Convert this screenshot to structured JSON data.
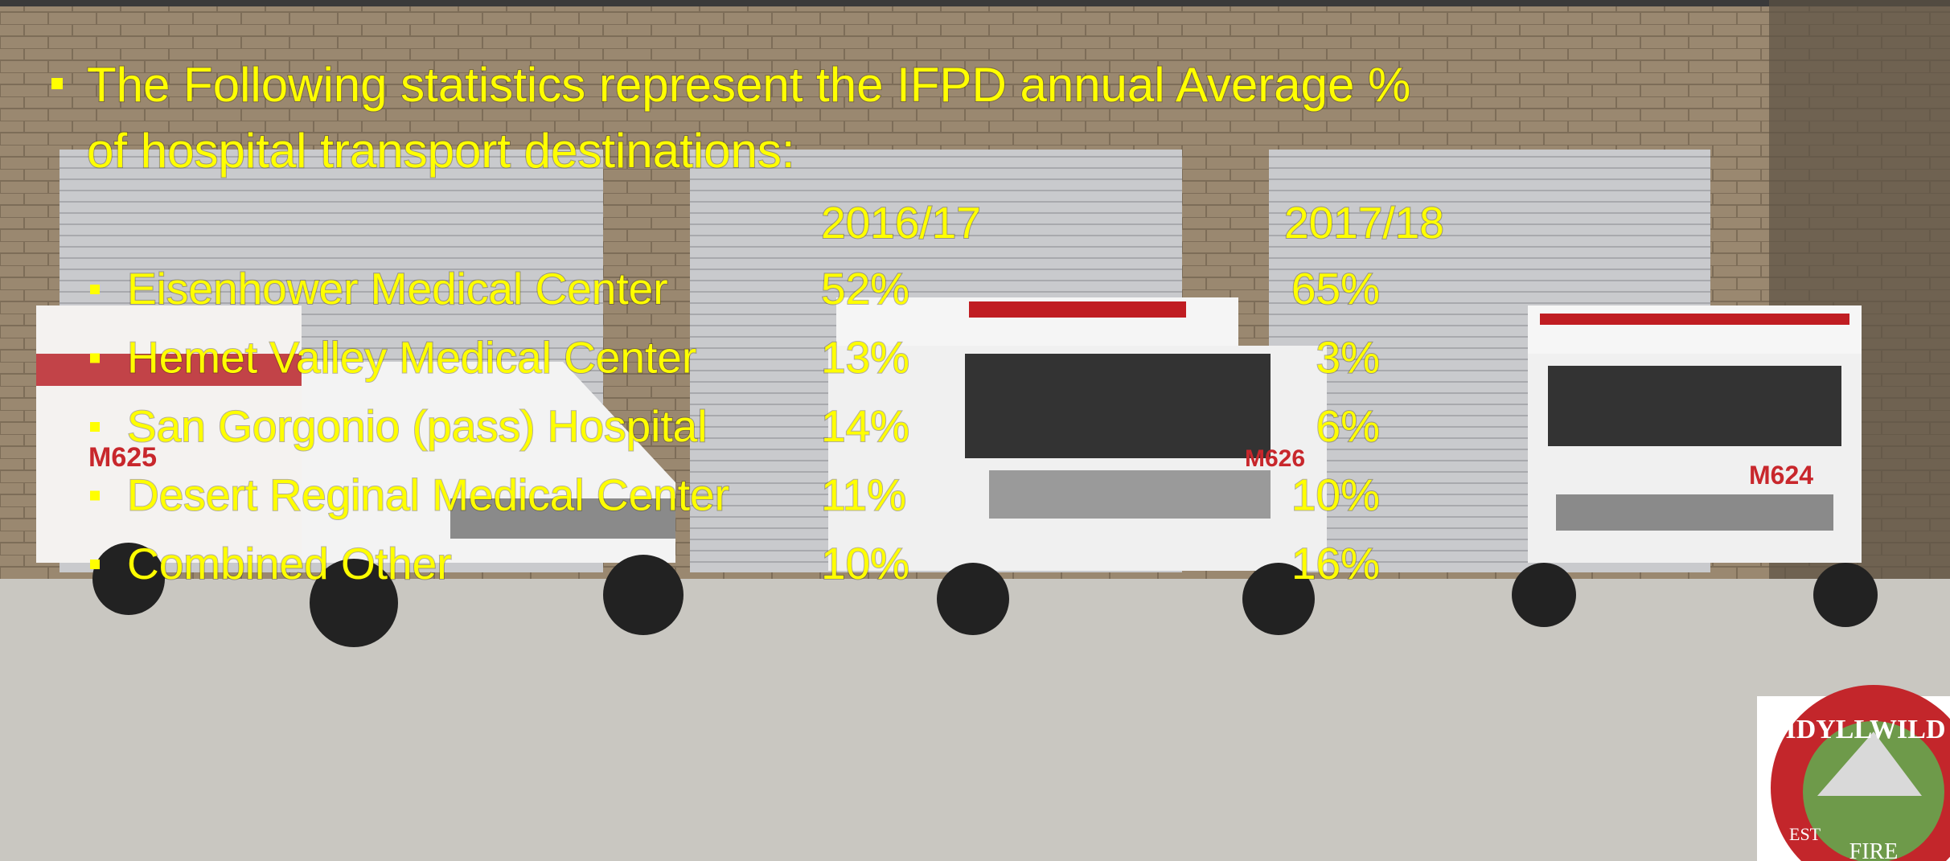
{
  "slide": {
    "title": "The Following statistics represent the IFPD annual Average % of hospital transport destinations:",
    "title_lines": [
      "The Following statistics represent the IFPD annual Average %",
      "of hospital transport destinations:"
    ],
    "table": {
      "columns": [
        "2016/17",
        "2017/18"
      ],
      "rows": [
        [
          "Eisenhower Medical Center",
          "52%",
          "65%"
        ],
        [
          "Hemet Valley Medical Center",
          "13%",
          "3%"
        ],
        [
          "San Gorgonio (pass) Hospital",
          "14%",
          "6%"
        ],
        [
          "Desert Reginal Medical Center",
          "11%",
          "10%"
        ],
        [
          "Combined Other",
          "10%",
          "16%"
        ]
      ]
    },
    "vehicles": [
      "M625",
      "M626",
      "M624"
    ],
    "logo": {
      "name": "IDYLLWILD",
      "bottom": "FIRE",
      "est": "EST"
    }
  }
}
